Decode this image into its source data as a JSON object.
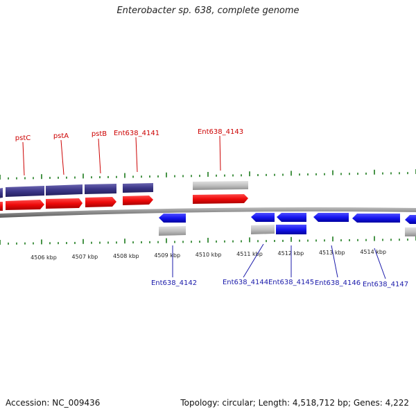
{
  "title": "Enterobacter sp. 638, complete genome",
  "footer": {
    "accession": "Accession: NC_009436",
    "info": "Topology: circular; Length: 4,518,712 bp; Genes: 4,222"
  },
  "colors": {
    "forward_gene": "#ee1111",
    "reverse_gene": "#1f1fe6",
    "cds_forward": "#3b3688",
    "misc_feature": "#bdbdbd",
    "tick": "#1a7a1a",
    "backbone": "#8a8a8a",
    "forward_label": "#cc0000",
    "reverse_label": "#1a1aaa"
  },
  "ticks": [
    {
      "label": "4506 kbp"
    },
    {
      "label": "4507 kbp"
    },
    {
      "label": "4508 kbp"
    },
    {
      "label": "4509 kbp"
    },
    {
      "label": "4510 kbp"
    },
    {
      "label": "4511 kbp"
    },
    {
      "label": "4512 kbp"
    },
    {
      "label": "4513 kbp"
    },
    {
      "label": "4514 kbp"
    }
  ],
  "forward_labels": [
    {
      "text": "pstC"
    },
    {
      "text": "pstA"
    },
    {
      "text": "pstB"
    },
    {
      "text": "Ent638_4141"
    },
    {
      "text": "Ent638_4143"
    }
  ],
  "reverse_labels": [
    {
      "text": "Ent638_4142"
    },
    {
      "text": "Ent638_4144"
    },
    {
      "text": "Ent638_4145"
    },
    {
      "text": "Ent638_4146"
    },
    {
      "text": "Ent638_4147"
    }
  ]
}
